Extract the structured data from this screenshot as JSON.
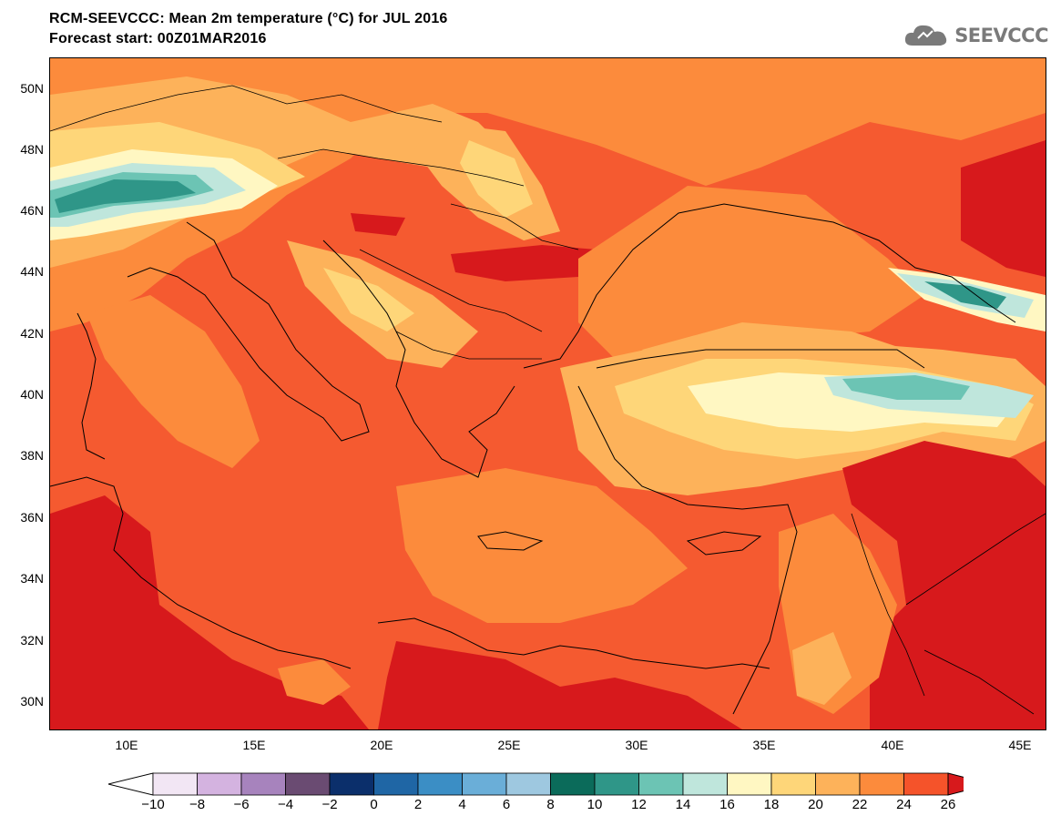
{
  "title": "RCM-SEEVCCC: Mean 2m temperature (°C) for JUL 2016",
  "subtitle": "Forecast start: 00Z01MAR2016",
  "logo_text": "SEEVCCC",
  "logo_icon": "cloud-icon",
  "map": {
    "lon_range": [
      7,
      46
    ],
    "lat_range": [
      29,
      51
    ],
    "lon_ticks": [
      "10E",
      "15E",
      "20E",
      "25E",
      "30E",
      "35E",
      "40E",
      "45E"
    ],
    "lat_ticks": [
      "50N",
      "48N",
      "46N",
      "44N",
      "42N",
      "40N",
      "38N",
      "36N",
      "34N",
      "32N",
      "30N"
    ],
    "variable": "Mean 2m temperature",
    "unit": "°C",
    "dominant_range": "22 to 26+"
  },
  "colorbar": {
    "labels": [
      "−10",
      "−8",
      "−6",
      "−4",
      "−2",
      "0",
      "2",
      "4",
      "6",
      "8",
      "10",
      "12",
      "14",
      "16",
      "18",
      "20",
      "22",
      "24",
      "26"
    ],
    "colors": [
      "#f2e6f4",
      "#d4b3e0",
      "#a783bd",
      "#6a4b72",
      "#0b2f6b",
      "#1f66a5",
      "#3b8ec5",
      "#6aaed8",
      "#9ec8e0",
      "#0b6b5a",
      "#2f9688",
      "#6cc4b4",
      "#bfe6dc",
      "#fff7c2",
      "#fed679",
      "#fdb25a",
      "#fc8b3c",
      "#f5532a"
    ],
    "under_color": "#ffffff",
    "over_color": "#d7191c"
  }
}
